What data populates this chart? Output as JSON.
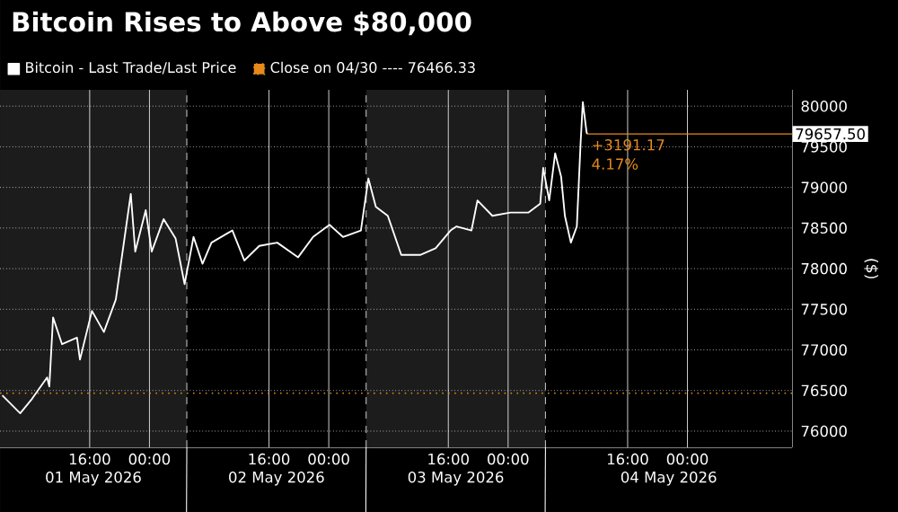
{
  "chart_data": {
    "type": "line",
    "title": "Bitcoin Rises to Above $80,000",
    "ylabel": "($)",
    "series": [
      {
        "name": "Bitcoin - Last Trade/Last Price",
        "color": "#ffffff",
        "x": [
          "2026-05-01T04:18",
          "2026-05-01T06:42",
          "2026-05-01T08:18",
          "2026-05-01T10:18",
          "2026-05-01T10:36",
          "2026-05-01T11:06",
          "2026-05-01T12:18",
          "2026-05-01T14:18",
          "2026-05-01T14:42",
          "2026-05-01T16:18",
          "2026-05-01T17:54",
          "2026-05-01T19:30",
          "2026-05-01T20:18",
          "2026-05-01T21:30",
          "2026-05-01T22:06",
          "2026-05-01T23:30",
          "2026-05-02T00:18",
          "2026-05-02T01:54",
          "2026-05-02T03:30",
          "2026-05-02T04:42",
          "2026-05-02T05:54",
          "2026-05-02T07:06",
          "2026-05-02T08:18",
          "2026-05-02T11:06",
          "2026-05-02T12:42",
          "2026-05-02T14:42",
          "2026-05-02T17:06",
          "2026-05-02T19:54",
          "2026-05-02T21:54",
          "2026-05-03T00:06",
          "2026-05-03T01:54",
          "2026-05-03T04:18",
          "2026-05-03T05:18",
          "2026-05-03T06:18",
          "2026-05-03T07:54",
          "2026-05-03T09:42",
          "2026-05-03T12:18",
          "2026-05-03T14:18",
          "2026-05-03T16:18",
          "2026-05-03T17:06",
          "2026-05-03T19:06",
          "2026-05-03T19:54",
          "2026-05-03T21:54",
          "2026-05-04T00:18",
          "2026-05-04T02:42",
          "2026-05-04T04:18",
          "2026-05-04T04:42",
          "2026-05-04T05:30",
          "2026-05-04T06:18",
          "2026-05-04T07:06",
          "2026-05-04T07:36",
          "2026-05-04T08:24",
          "2026-05-04T09:12",
          "2026-05-04T09:42",
          "2026-05-04T10:00",
          "2026-05-04T10:30",
          "2026-05-04T10:36"
        ],
        "values": [
          76440,
          76220,
          76400,
          76660,
          76550,
          77400,
          77070,
          77150,
          76880,
          77480,
          77220,
          77620,
          78140,
          78920,
          78210,
          78720,
          78210,
          78610,
          78370,
          77810,
          78390,
          78060,
          78320,
          78470,
          78100,
          78280,
          78320,
          78140,
          78390,
          78540,
          78390,
          78470,
          79110,
          78760,
          78650,
          78170,
          78170,
          78250,
          78470,
          78520,
          78470,
          78840,
          78650,
          78690,
          78690,
          78800,
          79240,
          78840,
          79420,
          79130,
          78650,
          78320,
          78520,
          79540,
          80050,
          79680,
          79657.5
        ]
      }
    ],
    "xlim": [
      "2026-05-01T04:00",
      "2026-05-05T14:00"
    ],
    "ylim": [
      75800,
      80200
    ],
    "xticks": [
      {
        "value": "2026-05-01T16:00",
        "label": "16:00"
      },
      {
        "value": "2026-05-02T00:00",
        "label": "00:00"
      },
      {
        "value": "2026-05-02T16:00",
        "label": "16:00"
      },
      {
        "value": "2026-05-03T00:00",
        "label": "00:00"
      },
      {
        "value": "2026-05-03T16:00",
        "label": "16:00"
      },
      {
        "value": "2026-05-04T00:00",
        "label": "00:00"
      },
      {
        "value": "2026-05-04T16:00",
        "label": "16:00"
      },
      {
        "value": "2026-05-05T00:00",
        "label": "00:00"
      }
    ],
    "yticks": [
      76000,
      76500,
      77000,
      77500,
      78000,
      78500,
      79000,
      79500,
      80000
    ],
    "bands": [
      {
        "axis": "x",
        "from": "2026-05-01T04:00",
        "to": "2026-05-02T05:00",
        "label": "01 May 2026",
        "color": "#1c1c1c"
      },
      {
        "axis": "x",
        "from": "2026-05-02T05:00",
        "to": "2026-05-03T05:00",
        "label": "02 May 2026",
        "color": "#000000"
      },
      {
        "axis": "x",
        "from": "2026-05-03T05:00",
        "to": "2026-05-04T05:00",
        "label": "03 May 2026",
        "color": "#1c1c1c"
      },
      {
        "axis": "x",
        "from": "2026-05-04T05:00",
        "to": "2026-05-05T14:00",
        "label": "04 May 2026",
        "color": "#000000"
      }
    ],
    "ref_lines": [
      {
        "axis": "y",
        "value": 76466.33,
        "label": "Close on 04/30 ---- 76466.33",
        "color": "#e8891c",
        "line_style": "dotted"
      }
    ],
    "annotations": [
      {
        "text": "79657.50",
        "x": "2026-05-04T10:36",
        "y": 79657.5
      },
      {
        "text": "+3191.17",
        "x": "2026-05-04T10:36",
        "y": 79657.5
      },
      {
        "text": "4.17%",
        "x": "2026-05-04T10:36",
        "y": 79657.5
      }
    ],
    "grid": true,
    "legend": "top left",
    "marker": "none",
    "line_style": "solid"
  }
}
